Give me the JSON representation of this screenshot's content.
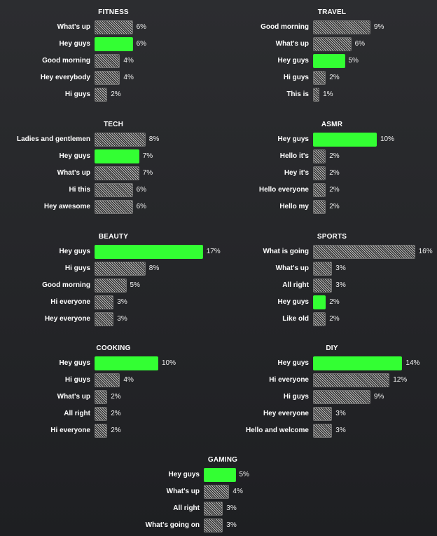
{
  "colors": {
    "highlight": "#33ff33",
    "hatch": "#bdbdbd",
    "background": "#26272a"
  },
  "chart_data": [
    {
      "type": "bar",
      "orientation": "horizontal",
      "title": "FITNESS",
      "value_suffix": "%",
      "categories": [
        "What's up",
        "Hey guys",
        "Good morning",
        "Hey everybody",
        "Hi guys"
      ],
      "values": [
        6,
        6,
        4,
        4,
        2
      ],
      "highlight": "Hey guys"
    },
    {
      "type": "bar",
      "orientation": "horizontal",
      "title": "TRAVEL",
      "value_suffix": "%",
      "categories": [
        "Good morning",
        "What's up",
        "Hey guys",
        "Hi guys",
        "This is"
      ],
      "values": [
        9,
        6,
        5,
        2,
        1
      ],
      "highlight": "Hey guys"
    },
    {
      "type": "bar",
      "orientation": "horizontal",
      "title": "TECH",
      "value_suffix": "%",
      "categories": [
        "Ladies and gentlemen",
        "Hey guys",
        "What's up",
        "Hi this",
        "Hey awesome"
      ],
      "values": [
        8,
        7,
        7,
        6,
        6
      ],
      "highlight": "Hey guys"
    },
    {
      "type": "bar",
      "orientation": "horizontal",
      "title": "ASMR",
      "value_suffix": "%",
      "categories": [
        "Hey guys",
        "Hello it's",
        "Hey it's",
        "Hello everyone",
        "Hello my"
      ],
      "values": [
        10,
        2,
        2,
        2,
        2
      ],
      "highlight": "Hey guys"
    },
    {
      "type": "bar",
      "orientation": "horizontal",
      "title": "BEAUTY",
      "value_suffix": "%",
      "categories": [
        "Hey guys",
        "Hi guys",
        "Good morning",
        "Hi everyone",
        "Hey everyone"
      ],
      "values": [
        17,
        8,
        5,
        3,
        3
      ],
      "highlight": "Hey guys"
    },
    {
      "type": "bar",
      "orientation": "horizontal",
      "title": "SPORTS",
      "value_suffix": "%",
      "categories": [
        "What is going",
        "What's up",
        "All right",
        "Hey guys",
        "Like old"
      ],
      "values": [
        16,
        3,
        3,
        2,
        2
      ],
      "highlight": "Hey guys"
    },
    {
      "type": "bar",
      "orientation": "horizontal",
      "title": "COOKING",
      "value_suffix": "%",
      "categories": [
        "Hey guys",
        "Hi guys",
        "What's up",
        "All right",
        "Hi everyone"
      ],
      "values": [
        10,
        4,
        2,
        2,
        2
      ],
      "highlight": "Hey guys"
    },
    {
      "type": "bar",
      "orientation": "horizontal",
      "title": "DIY",
      "value_suffix": "%",
      "categories": [
        "Hey guys",
        "Hi everyone",
        "Hi guys",
        "Hey everyone",
        "Hello and welcome"
      ],
      "values": [
        14,
        12,
        9,
        3,
        3
      ],
      "highlight": "Hey guys"
    },
    {
      "type": "bar",
      "orientation": "horizontal",
      "title": "GAMING",
      "value_suffix": "%",
      "categories": [
        "Hey guys",
        "What's up",
        "All right",
        "What's going on"
      ],
      "values": [
        5,
        4,
        3,
        3
      ],
      "highlight": "Hey guys"
    }
  ]
}
